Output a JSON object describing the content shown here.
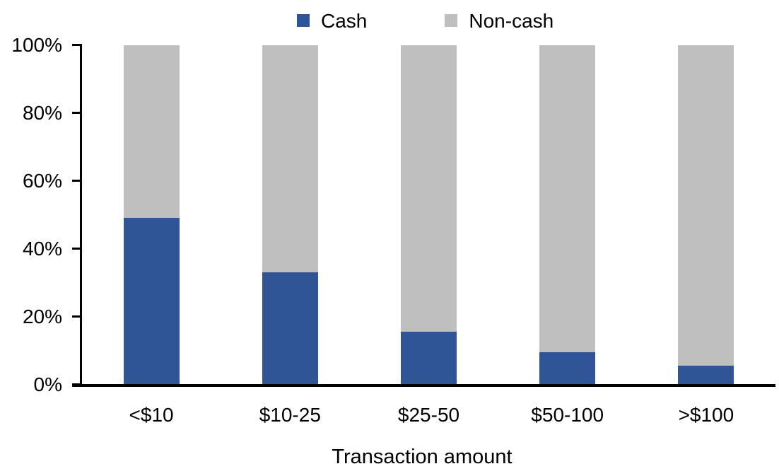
{
  "chart_data": {
    "type": "bar",
    "variant": "stacked-100-percent",
    "title": "",
    "xlabel": "Transaction amount",
    "ylabel": "",
    "categories": [
      "<$10",
      "$10-25",
      "$25-50",
      "$50-100",
      ">$100"
    ],
    "series": [
      {
        "name": "Cash",
        "color": "#2F5597",
        "values": [
          49,
          33,
          15.5,
          9.5,
          5.5
        ]
      },
      {
        "name": "Non-cash",
        "color": "#BFBFBF",
        "values": [
          51,
          67,
          84.5,
          90.5,
          94.5
        ]
      }
    ],
    "ylim": [
      0,
      100
    ],
    "yticks": [
      "0%",
      "20%",
      "40%",
      "60%",
      "80%",
      "100%"
    ],
    "grid": false,
    "legend_position": "top-center",
    "axis_color": "#000000"
  }
}
